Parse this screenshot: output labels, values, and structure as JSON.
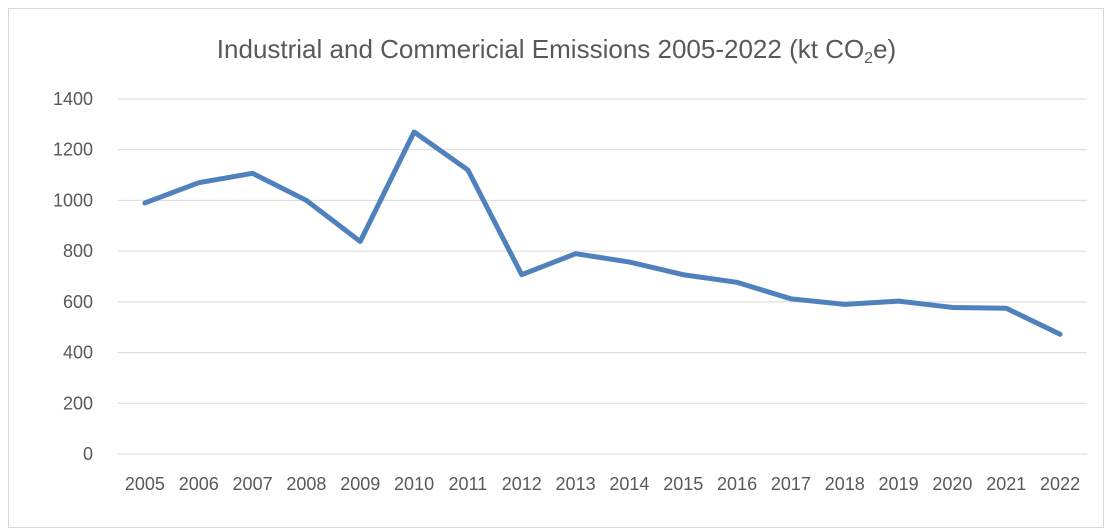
{
  "chart_data": {
    "type": "line",
    "title": {
      "prefix": "Industrial and Commericial Emissions 2005-2022 (kt CO",
      "subscript": "2",
      "suffix": "e)"
    },
    "categories": [
      "2005",
      "2006",
      "2007",
      "2008",
      "2009",
      "2010",
      "2011",
      "2012",
      "2013",
      "2014",
      "2015",
      "2016",
      "2017",
      "2018",
      "2019",
      "2020",
      "2021",
      "2022"
    ],
    "series": [
      {
        "values": [
          990,
          1070,
          1107,
          1000,
          838,
          1270,
          1120,
          707,
          790,
          757,
          707,
          677,
          612,
          590,
          603,
          578,
          575,
          472
        ],
        "color": "#4f81bd"
      }
    ],
    "ylim": [
      0,
      1400
    ],
    "yticks": [
      0,
      200,
      400,
      600,
      800,
      1000,
      1200,
      1400
    ],
    "ytick_labels": [
      "0",
      "200",
      "400",
      "600",
      "800",
      "1000",
      "1200",
      "1400"
    ],
    "grid": true,
    "gridline_color": "#d9d9d9",
    "text_color": "#595959",
    "legend": "none"
  }
}
